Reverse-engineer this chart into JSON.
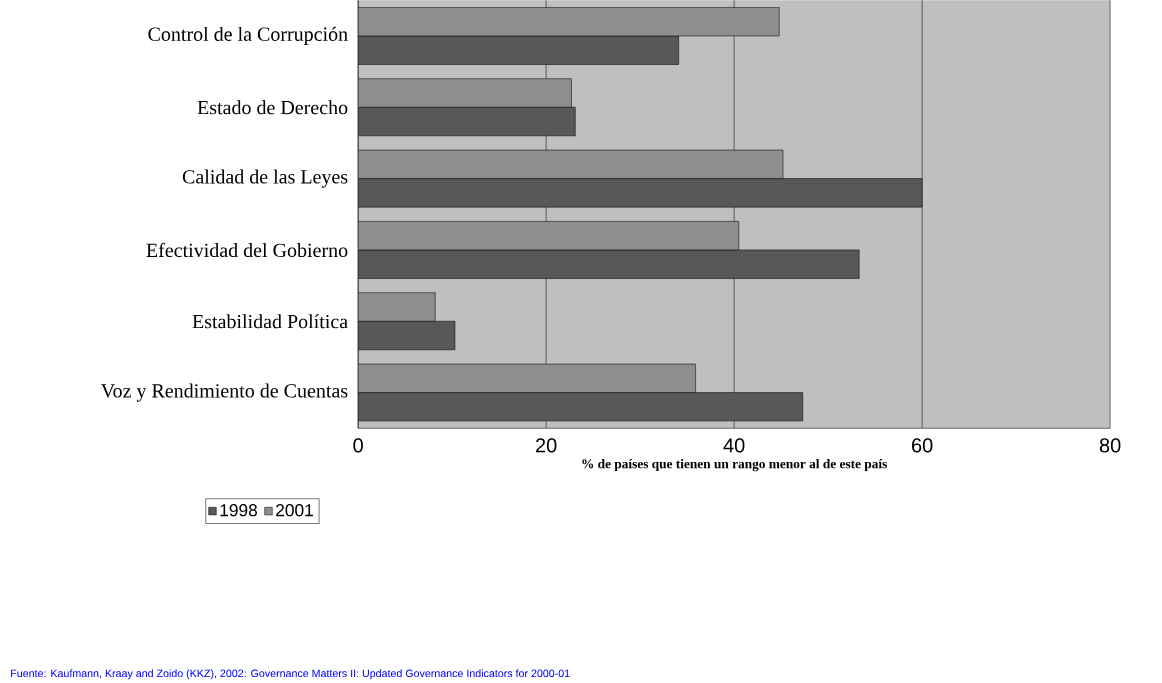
{
  "chart_data": {
    "type": "bar",
    "orientation": "horizontal",
    "categories": [
      "Control de la Corrupción",
      "Estado de Derecho",
      "Calidad de las Leyes",
      "Efectividad del Gobierno",
      "Estabilidad Política",
      "Voz y Rendimiento de Cuentas"
    ],
    "series": [
      {
        "name": "1998",
        "color": "#585858",
        "values": [
          34.1,
          23.1,
          60.0,
          53.3,
          10.3,
          47.3
        ]
      },
      {
        "name": "2001",
        "color": "#8e8e8e",
        "values": [
          44.8,
          22.7,
          45.2,
          40.5,
          8.2,
          35.9
        ]
      }
    ],
    "xlim": [
      0,
      80
    ],
    "xticks": [
      0,
      20,
      40,
      60,
      80
    ],
    "grid": "x",
    "legend": "bottom left",
    "xlabel": "% de países que tienen un rango menor al de este país",
    "annotations": [
      "Fuente: Kaufmann, Kraay and Zoido (KKZ), 2002: Governance Matters II: Updated Governance Indicators for 2000-01"
    ]
  }
}
